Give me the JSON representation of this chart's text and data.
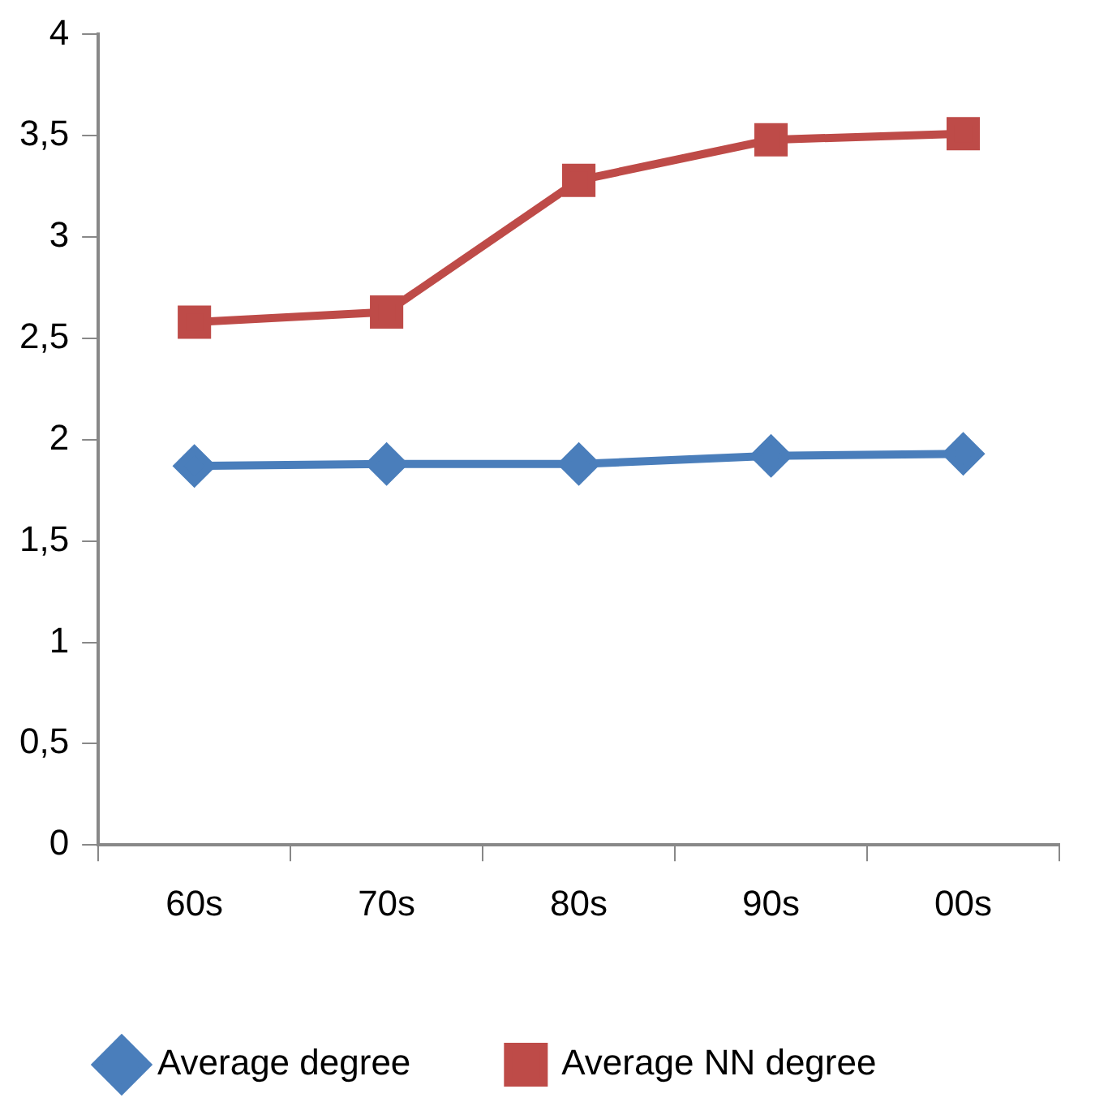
{
  "chart_data": {
    "type": "line",
    "categories": [
      "60s",
      "70s",
      "80s",
      "90s",
      "00s"
    ],
    "series": [
      {
        "name": "Average degree",
        "color": "#4a7ebb",
        "marker": "diamond",
        "values": [
          1.87,
          1.88,
          1.88,
          1.92,
          1.93
        ]
      },
      {
        "name": "Average NN degree",
        "color": "#be4b48",
        "marker": "square",
        "values": [
          2.58,
          2.63,
          3.28,
          3.48,
          3.51
        ]
      }
    ],
    "ylim": [
      0,
      4
    ],
    "yticks": [
      0,
      {
        "value": 0.5,
        "label": "0,5"
      },
      1,
      {
        "value": 1.5,
        "label": "1,5"
      },
      2,
      {
        "value": 2.5,
        "label": "2,5"
      },
      3,
      {
        "value": 3.5,
        "label": "3,5"
      },
      4
    ],
    "grid": false,
    "legend": "bottom",
    "line_style": "solid"
  }
}
